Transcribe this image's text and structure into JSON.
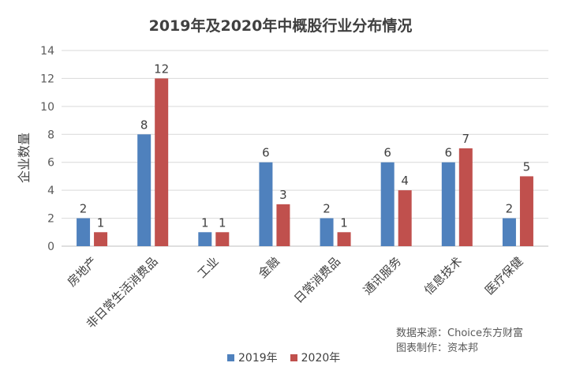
{
  "colors": {
    "series_2019": "#4f81bd",
    "series_2020": "#c0504d"
  },
  "chart_data": {
    "type": "bar",
    "title": "2019年及2020年中概股行业分布情况",
    "xlabel": "",
    "ylabel": "企业数量",
    "ylim": [
      0,
      14
    ],
    "yticks": [
      0,
      2,
      4,
      6,
      8,
      10,
      12,
      14
    ],
    "grid": true,
    "legend_position": "bottom",
    "categories": [
      "房地产",
      "非日常生活消费品",
      "工业",
      "金融",
      "日常消费品",
      "通讯服务",
      "信息技术",
      "医疗保健"
    ],
    "series": [
      {
        "name": "2019年",
        "values": [
          2,
          8,
          1,
          6,
          2,
          6,
          6,
          2
        ]
      },
      {
        "name": "2020年",
        "values": [
          1,
          12,
          1,
          3,
          1,
          4,
          7,
          5
        ]
      }
    ]
  },
  "source": {
    "data_source": "数据来源：Choice东方财富",
    "made_by": "图表制作：资本邦"
  }
}
